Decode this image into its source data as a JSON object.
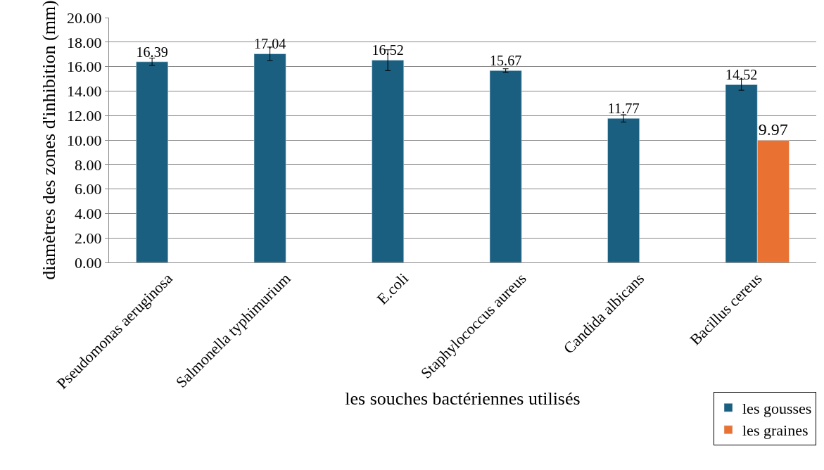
{
  "chart_data": {
    "type": "bar",
    "xlabel": "les souches bactériennes utilisés",
    "ylabel": "diamètres des zones d'inhibition (mm)",
    "categories": [
      "Pseudomonas aeruginosa",
      "Salmonella typhimurium",
      "E.coli",
      "Staphylococcus aureus",
      "Candida albicans",
      "Bacillus cereus"
    ],
    "series": [
      {
        "name": "les gousses",
        "color": "#1a5f80",
        "values": [
          16.39,
          17.04,
          16.52,
          15.67,
          11.77,
          14.52
        ],
        "errors": [
          0.3,
          0.55,
          0.85,
          0.15,
          0.3,
          0.45
        ]
      },
      {
        "name": "les graines",
        "color": "#e97132",
        "values": [
          null,
          null,
          null,
          null,
          null,
          9.97
        ]
      }
    ],
    "ylim": [
      0,
      20
    ],
    "yticks": [
      {
        "value": 0,
        "label": "0.00"
      },
      {
        "value": 2,
        "label": "2.00"
      },
      {
        "value": 4,
        "label": "4.00"
      },
      {
        "value": 6,
        "label": "6.00"
      },
      {
        "value": 8,
        "label": "8.00"
      },
      {
        "value": 10,
        "label": "10.00"
      },
      {
        "value": 12,
        "label": "12.00"
      },
      {
        "value": 14,
        "label": "14.00"
      },
      {
        "value": 16,
        "label": "16.00"
      },
      {
        "value": 18,
        "label": "18.00"
      },
      {
        "value": 20,
        "label": "20.00"
      }
    ],
    "grid": "y",
    "legend": "bottom right",
    "data_labels": true
  }
}
